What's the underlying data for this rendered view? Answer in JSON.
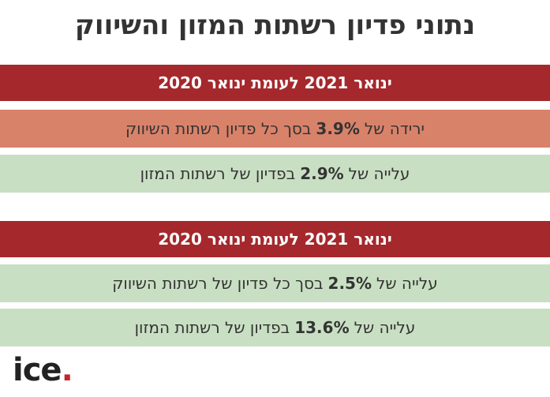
{
  "header": {
    "title": "נתוני פדיון רשתות המזון והשיווק"
  },
  "sections": [
    {
      "heading": "ינואר 2021 לעומת ינואר 2020",
      "rows": [
        {
          "prefix": "ירידה של",
          "value": "3.9%",
          "suffix": "בסך כל פדיון רשתות השיווק"
        },
        {
          "prefix": "עלייה של",
          "value": "2.9%",
          "suffix": "בפדיון של רשתות המזון"
        }
      ]
    },
    {
      "heading": "ינואר 2021 לעומת ינואר 2020",
      "rows": [
        {
          "prefix": "עלייה של",
          "value": "2.5%",
          "suffix": "בסך כל פדיון של רשתות השיווק"
        },
        {
          "prefix": "עלייה של",
          "value": "13.6%",
          "suffix": "בפדיון של רשתות המזון"
        }
      ]
    }
  ],
  "logo": {
    "text": "ice",
    "dot": "."
  }
}
